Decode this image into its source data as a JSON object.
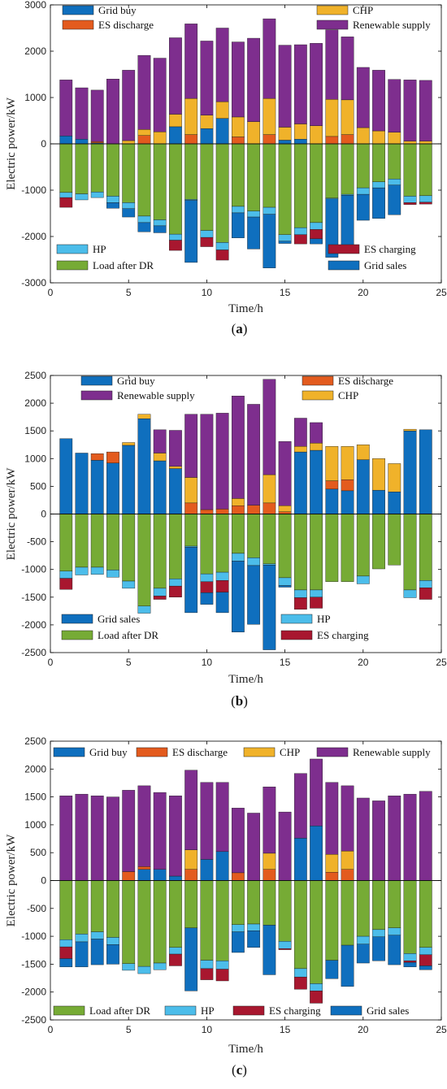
{
  "colors": {
    "grid_buy": "#0f6fbe",
    "es_discharge": "#e35b1e",
    "chp": "#f0b22a",
    "renewable": "#7e2e8e",
    "load": "#76ab35",
    "hp": "#4cbdea",
    "es_charging": "#a8172f",
    "grid_sales": "#0f6fbe"
  },
  "chart_data": [
    {
      "type": "bar",
      "panel": "(a)",
      "panel_letter": "a",
      "xlabel": "Time/h",
      "ylabel": "Electric power/kW",
      "xlim": [
        0,
        25
      ],
      "ylim": [
        -3000,
        3000
      ],
      "xticks": [
        0,
        5,
        10,
        15,
        20,
        25
      ],
      "yticks": [
        -3000,
        -2000,
        -1000,
        0,
        1000,
        2000,
        3000
      ],
      "x": [
        1,
        2,
        3,
        4,
        5,
        6,
        7,
        8,
        9,
        10,
        11,
        12,
        13,
        14,
        15,
        16,
        17,
        18,
        19,
        20,
        21,
        22,
        23,
        24
      ],
      "positive_series": [
        {
          "key": "grid_buy",
          "name": "Grid  buy",
          "values": [
            170,
            100,
            20,
            0,
            0,
            0,
            0,
            370,
            0,
            330,
            550,
            0,
            0,
            0,
            80,
            100,
            0,
            0,
            0,
            0,
            0,
            0,
            0,
            0
          ]
        },
        {
          "key": "es_discharge",
          "name": "ES discharge",
          "values": [
            0,
            0,
            30,
            0,
            0,
            180,
            0,
            0,
            200,
            0,
            0,
            150,
            0,
            200,
            0,
            0,
            0,
            160,
            200,
            0,
            0,
            0,
            0,
            0
          ]
        },
        {
          "key": "chp",
          "name": "CHP",
          "values": [
            0,
            0,
            0,
            0,
            70,
            130,
            260,
            270,
            780,
            290,
            360,
            430,
            480,
            780,
            280,
            330,
            390,
            800,
            750,
            350,
            280,
            250,
            60,
            60
          ]
        },
        {
          "key": "renewable",
          "name": "Renewable supply",
          "values": [
            1210,
            1110,
            1110,
            1400,
            1520,
            1600,
            1590,
            1650,
            1610,
            1600,
            1590,
            1620,
            1800,
            1720,
            1770,
            1710,
            1780,
            1500,
            1360,
            1300,
            1310,
            1140,
            1320,
            1310
          ]
        }
      ],
      "negative_series": [
        {
          "key": "load",
          "name": "Load after DR",
          "values": [
            -1050,
            -1080,
            -1040,
            -1130,
            -1270,
            -1560,
            -1640,
            -1950,
            -1200,
            -1870,
            -2130,
            -1350,
            -1450,
            -1370,
            -1960,
            -1810,
            -1700,
            -1170,
            -1090,
            -950,
            -820,
            -760,
            -1130,
            -1120
          ]
        },
        {
          "key": "hp",
          "name": "HP",
          "values": [
            -110,
            -130,
            -120,
            -140,
            -130,
            -140,
            -130,
            -130,
            -20,
            -150,
            -160,
            -140,
            -130,
            -150,
            -140,
            -150,
            -150,
            -20,
            -20,
            -140,
            -130,
            -130,
            -140,
            -140
          ]
        },
        {
          "key": "es_charging",
          "name": "ES charging",
          "values": [
            -210,
            0,
            0,
            0,
            0,
            0,
            0,
            -220,
            0,
            -200,
            -220,
            0,
            0,
            0,
            0,
            -200,
            -200,
            0,
            0,
            0,
            0,
            0,
            -40,
            -40
          ]
        },
        {
          "key": "grid_sales",
          "name": "Grid  sales",
          "values": [
            0,
            0,
            0,
            -120,
            -180,
            -200,
            -150,
            0,
            -1340,
            0,
            0,
            -540,
            -690,
            -1160,
            -50,
            0,
            -110,
            -1260,
            -1190,
            -560,
            -660,
            -640,
            0,
            0
          ]
        }
      ]
    },
    {
      "type": "bar",
      "panel": "(b)",
      "panel_letter": "b",
      "xlabel": "Time/h",
      "ylabel": "Electric power/kW",
      "xlim": [
        0,
        25
      ],
      "ylim": [
        -2500,
        2500
      ],
      "xticks": [
        0,
        5,
        10,
        15,
        20,
        25
      ],
      "yticks": [
        -2500,
        -2000,
        -1500,
        -1000,
        -500,
        0,
        500,
        1000,
        1500,
        2000,
        2500
      ],
      "x": [
        1,
        2,
        3,
        4,
        5,
        6,
        7,
        8,
        9,
        10,
        11,
        12,
        13,
        14,
        15,
        16,
        17,
        18,
        19,
        20,
        21,
        22,
        23,
        24
      ],
      "positive_series": [
        {
          "key": "grid_buy",
          "name": "Grid  buy",
          "values": [
            1360,
            1100,
            970,
            920,
            1240,
            1720,
            960,
            820,
            0,
            0,
            0,
            0,
            0,
            0,
            0,
            1120,
            1150,
            450,
            420,
            980,
            430,
            400,
            1500,
            1520
          ]
        },
        {
          "key": "es_discharge",
          "name": "ES discharge",
          "values": [
            0,
            0,
            120,
            200,
            0,
            0,
            0,
            0,
            200,
            80,
            90,
            150,
            160,
            200,
            40,
            0,
            0,
            150,
            200,
            0,
            0,
            0,
            0,
            0
          ]
        },
        {
          "key": "chp",
          "name": "CHP",
          "values": [
            0,
            0,
            0,
            0,
            50,
            80,
            140,
            40,
            460,
            0,
            0,
            130,
            0,
            510,
            110,
            100,
            130,
            620,
            600,
            270,
            570,
            510,
            30,
            0
          ]
        },
        {
          "key": "renewable",
          "name": "Renewable supply",
          "values": [
            0,
            0,
            0,
            0,
            0,
            0,
            420,
            650,
            1140,
            1720,
            1730,
            1850,
            1820,
            1720,
            1160,
            510,
            370,
            0,
            0,
            0,
            0,
            0,
            0,
            0
          ]
        }
      ],
      "negative_series": [
        {
          "key": "load",
          "name": "Load after DR",
          "values": [
            -1030,
            -960,
            -960,
            -1010,
            -1210,
            -1660,
            -1340,
            -1170,
            -580,
            -1080,
            -1050,
            -710,
            -790,
            -900,
            -1150,
            -1370,
            -1370,
            -1220,
            -1220,
            -1120,
            -990,
            -920,
            -1370,
            -1200
          ]
        },
        {
          "key": "hp",
          "name": "HP",
          "values": [
            -130,
            -140,
            -130,
            -130,
            -130,
            -130,
            -140,
            -130,
            -20,
            -140,
            -150,
            -140,
            -140,
            -20,
            -140,
            -140,
            -130,
            0,
            0,
            -140,
            0,
            0,
            -140,
            -130
          ]
        },
        {
          "key": "es_charging",
          "name": "ES charging",
          "values": [
            -200,
            0,
            0,
            0,
            0,
            0,
            -60,
            -200,
            0,
            -200,
            -210,
            0,
            0,
            0,
            0,
            -210,
            -200,
            0,
            0,
            0,
            0,
            0,
            0,
            -210
          ]
        },
        {
          "key": "grid_sales",
          "name": "Grid  sales",
          "values": [
            0,
            0,
            0,
            0,
            0,
            0,
            0,
            0,
            -1180,
            -210,
            -370,
            -1280,
            -1060,
            -1530,
            -30,
            0,
            0,
            0,
            0,
            0,
            0,
            0,
            0,
            0
          ]
        }
      ]
    },
    {
      "type": "bar",
      "panel": "(c)",
      "panel_letter": "c",
      "xlabel": "Time/h",
      "ylabel": "Electric power/kW",
      "xlim": [
        0,
        25
      ],
      "ylim": [
        -2500,
        2500
      ],
      "xticks": [
        0,
        5,
        10,
        15,
        20,
        25
      ],
      "yticks": [
        -2500,
        -2000,
        -1500,
        -1000,
        -500,
        0,
        500,
        1000,
        1500,
        2000,
        2500
      ],
      "x": [
        1,
        2,
        3,
        4,
        5,
        6,
        7,
        8,
        9,
        10,
        11,
        12,
        13,
        14,
        15,
        16,
        17,
        18,
        19,
        20,
        21,
        22,
        23,
        24
      ],
      "positive_series": [
        {
          "key": "grid_buy",
          "name": "Grid  buy",
          "values": [
            0,
            0,
            0,
            0,
            0,
            200,
            200,
            80,
            0,
            380,
            520,
            0,
            0,
            0,
            0,
            760,
            980,
            0,
            0,
            0,
            0,
            0,
            0,
            0
          ]
        },
        {
          "key": "es_discharge",
          "name": "ES discharge",
          "values": [
            0,
            0,
            0,
            0,
            160,
            50,
            0,
            0,
            200,
            0,
            0,
            140,
            0,
            200,
            0,
            0,
            0,
            150,
            200,
            0,
            0,
            0,
            0,
            0
          ]
        },
        {
          "key": "chp",
          "name": "CHP",
          "values": [
            0,
            0,
            0,
            0,
            0,
            0,
            0,
            0,
            350,
            0,
            0,
            0,
            0,
            290,
            0,
            0,
            0,
            320,
            330,
            0,
            0,
            0,
            0,
            0
          ]
        },
        {
          "key": "renewable",
          "name": "Renewable supply",
          "values": [
            1520,
            1550,
            1520,
            1500,
            1460,
            1450,
            1380,
            1440,
            1430,
            1380,
            1240,
            1160,
            1210,
            1190,
            1230,
            1160,
            1200,
            1290,
            1170,
            1480,
            1430,
            1520,
            1550,
            1600
          ]
        }
      ],
      "negative_series": [
        {
          "key": "load",
          "name": "Load after DR",
          "values": [
            -1060,
            -960,
            -920,
            -1020,
            -1490,
            -1540,
            -1480,
            -1200,
            -850,
            -1430,
            -1440,
            -790,
            -780,
            -800,
            -1090,
            -1580,
            -1850,
            -1430,
            -1160,
            -1000,
            -880,
            -850,
            -1310,
            -1200
          ]
        },
        {
          "key": "hp",
          "name": "HP",
          "values": [
            -130,
            -140,
            -130,
            -130,
            -120,
            -130,
            -120,
            -120,
            0,
            -150,
            -150,
            -130,
            -120,
            0,
            -130,
            -150,
            -130,
            0,
            0,
            -140,
            -130,
            -130,
            -130,
            -130
          ]
        },
        {
          "key": "es_charging",
          "name": "ES charging",
          "values": [
            -210,
            0,
            0,
            0,
            0,
            0,
            0,
            -210,
            0,
            -200,
            -210,
            0,
            0,
            0,
            -20,
            -220,
            -220,
            0,
            0,
            0,
            0,
            0,
            -30,
            -200
          ]
        },
        {
          "key": "grid_sales",
          "name": "Grid  sales",
          "values": [
            -150,
            -450,
            -460,
            -350,
            0,
            0,
            0,
            0,
            -1130,
            0,
            0,
            -370,
            -300,
            -890,
            0,
            0,
            0,
            -330,
            -740,
            -340,
            -430,
            -530,
            -80,
            -70
          ]
        }
      ]
    }
  ],
  "legends": [
    {
      "top_left": [
        {
          "key": "grid_buy",
          "label": "Grid  buy"
        },
        {
          "key": "es_discharge",
          "label": "ES discharge"
        }
      ],
      "top_right": [
        {
          "key": "chp",
          "label": "CHP"
        },
        {
          "key": "renewable",
          "label": "Renewable supply"
        }
      ],
      "bottom_left": [
        {
          "key": "hp",
          "label": "HP"
        },
        {
          "key": "load",
          "label": "Load after DR"
        }
      ],
      "bottom_right": [
        {
          "key": "es_charging",
          "label": "ES charging"
        },
        {
          "key": "grid_sales",
          "label": "Grid  sales"
        }
      ]
    },
    {
      "top_left": [
        {
          "key": "grid_buy",
          "label": "Grid  buy"
        },
        {
          "key": "renewable",
          "label": "Renewable supply"
        }
      ],
      "top_right": [
        {
          "key": "es_discharge",
          "label": "ES discharge"
        },
        {
          "key": "chp",
          "label": "CHP"
        }
      ],
      "bottom_left": [
        {
          "key": "grid_sales",
          "label": "Grid  sales"
        },
        {
          "key": "load",
          "label": "Load after DR"
        }
      ],
      "bottom_right": [
        {
          "key": "hp",
          "label": "HP"
        },
        {
          "key": "es_charging",
          "label": "ES charging"
        }
      ]
    },
    {
      "top_row": [
        {
          "key": "grid_buy",
          "label": "Grid  buy"
        },
        {
          "key": "es_discharge",
          "label": "ES discharge"
        },
        {
          "key": "chp",
          "label": "CHP"
        },
        {
          "key": "renewable",
          "label": "Renewable supply"
        }
      ],
      "bottom_row": [
        {
          "key": "load",
          "label": "Load after DR"
        },
        {
          "key": "hp",
          "label": "HP"
        },
        {
          "key": "es_charging",
          "label": "ES charging"
        },
        {
          "key": "grid_sales",
          "label": "Grid  sales"
        }
      ]
    }
  ]
}
